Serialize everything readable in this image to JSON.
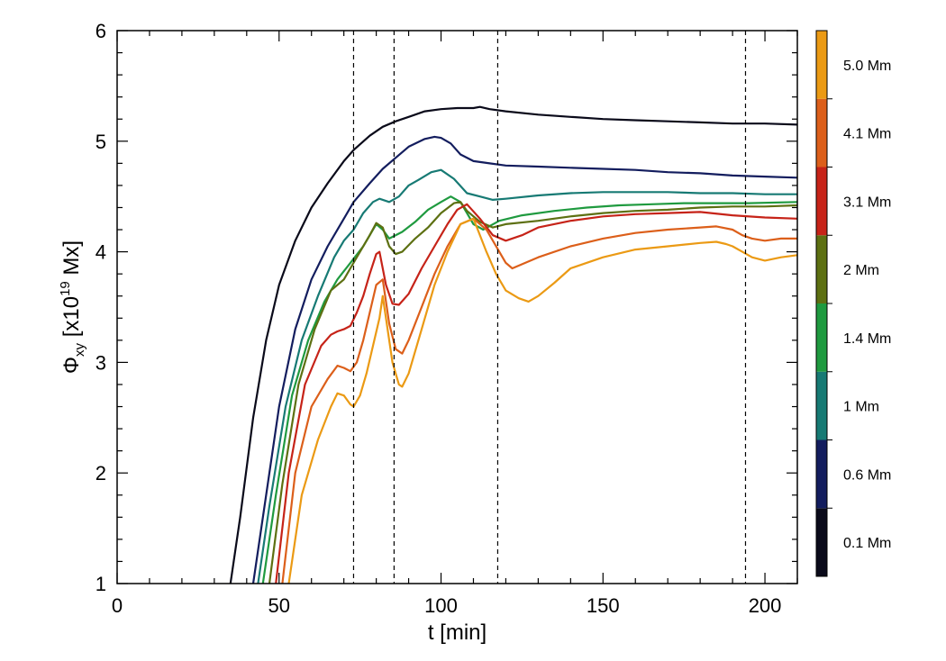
{
  "chart_data": {
    "type": "line",
    "xlabel": "t [min]",
    "ylabel": {
      "symbol": "Φ",
      "subscript": "xy",
      "prefix": " [x10",
      "superscript": "19",
      "suffix": " Mx]"
    },
    "xlim": [
      0,
      210
    ],
    "ylim": [
      1,
      6
    ],
    "xticks": [
      0,
      50,
      100,
      150,
      200
    ],
    "yticks": [
      1,
      2,
      3,
      4,
      5,
      6
    ],
    "vlines": [
      73,
      85.5,
      117.5,
      194
    ],
    "vline_style": "dashed",
    "grid": false,
    "legend": "colorbar-right",
    "series": [
      {
        "name": "0.1 Mm",
        "color": "#0a0a1a",
        "x": [
          35,
          38,
          42,
          46,
          50,
          55,
          60,
          65,
          70,
          73,
          78,
          82,
          86,
          90,
          95,
          100,
          105,
          110,
          112,
          115,
          120,
          130,
          140,
          150,
          160,
          170,
          180,
          190,
          200,
          210
        ],
        "y": [
          1.0,
          1.6,
          2.5,
          3.2,
          3.7,
          4.1,
          4.4,
          4.62,
          4.82,
          4.92,
          5.05,
          5.13,
          5.18,
          5.22,
          5.27,
          5.29,
          5.3,
          5.3,
          5.31,
          5.29,
          5.27,
          5.24,
          5.22,
          5.2,
          5.19,
          5.18,
          5.17,
          5.16,
          5.16,
          5.15
        ]
      },
      {
        "name": "0.6 Mm",
        "color": "#131d5e",
        "x": [
          42,
          45,
          50,
          55,
          60,
          65,
          70,
          73,
          78,
          82,
          86,
          90,
          95,
          98,
          100,
          103,
          106,
          110,
          115,
          120,
          130,
          140,
          150,
          160,
          170,
          180,
          190,
          200,
          210
        ],
        "y": [
          1.0,
          1.6,
          2.6,
          3.3,
          3.75,
          4.05,
          4.3,
          4.45,
          4.62,
          4.75,
          4.85,
          4.95,
          5.02,
          5.04,
          5.03,
          4.98,
          4.88,
          4.82,
          4.8,
          4.78,
          4.77,
          4.76,
          4.75,
          4.74,
          4.72,
          4.71,
          4.69,
          4.68,
          4.67
        ]
      },
      {
        "name": "1 Mm",
        "color": "#177a74",
        "x": [
          43.5,
          47,
          52,
          57,
          62,
          67,
          70,
          73,
          76,
          79,
          81,
          84,
          87,
          90,
          93,
          97,
          100,
          104,
          108,
          112,
          116,
          120,
          130,
          140,
          150,
          160,
          170,
          180,
          190,
          200,
          210
        ],
        "y": [
          1.0,
          1.7,
          2.6,
          3.2,
          3.6,
          3.95,
          4.1,
          4.2,
          4.35,
          4.45,
          4.48,
          4.45,
          4.5,
          4.6,
          4.65,
          4.72,
          4.74,
          4.66,
          4.53,
          4.5,
          4.47,
          4.48,
          4.51,
          4.53,
          4.54,
          4.54,
          4.54,
          4.53,
          4.53,
          4.52,
          4.52
        ]
      },
      {
        "name": "1.4 Mm",
        "color": "#1f9a3f",
        "x": [
          45,
          49,
          54,
          59,
          64,
          68,
          72,
          76,
          78,
          80,
          82,
          84,
          88,
          92,
          96,
          100,
          103,
          106,
          110,
          113,
          118,
          125,
          135,
          145,
          155,
          165,
          175,
          185,
          195,
          210
        ],
        "y": [
          1.0,
          1.8,
          2.7,
          3.2,
          3.55,
          3.75,
          3.9,
          4.05,
          4.15,
          4.25,
          4.2,
          4.12,
          4.18,
          4.27,
          4.38,
          4.45,
          4.5,
          4.45,
          4.25,
          4.2,
          4.28,
          4.33,
          4.37,
          4.4,
          4.42,
          4.43,
          4.44,
          4.44,
          4.44,
          4.45
        ]
      },
      {
        "name": "2 Mm",
        "color": "#5d7012",
        "x": [
          47,
          51,
          56,
          61,
          66,
          70,
          74,
          78,
          80,
          82,
          84,
          86,
          88,
          92,
          96,
          100,
          104,
          106,
          108,
          112,
          116,
          120,
          130,
          140,
          150,
          160,
          170,
          180,
          190,
          200,
          210
        ],
        "y": [
          1.0,
          1.9,
          2.8,
          3.3,
          3.65,
          3.75,
          3.95,
          4.15,
          4.26,
          4.22,
          4.05,
          3.98,
          4.0,
          4.12,
          4.22,
          4.35,
          4.44,
          4.45,
          4.37,
          4.27,
          4.22,
          4.25,
          4.28,
          4.32,
          4.35,
          4.37,
          4.38,
          4.4,
          4.41,
          4.41,
          4.42
        ]
      },
      {
        "name": "3.1 Mm",
        "color": "#c62318",
        "x": [
          49,
          53,
          58,
          63,
          66,
          68,
          70,
          72,
          74,
          76,
          78,
          80,
          81,
          83,
          85,
          87,
          90,
          94,
          98,
          102,
          105,
          108,
          112,
          116,
          120,
          125,
          130,
          140,
          150,
          160,
          170,
          180,
          190,
          200,
          210
        ],
        "y": [
          1.0,
          2.0,
          2.8,
          3.15,
          3.25,
          3.28,
          3.3,
          3.33,
          3.45,
          3.6,
          3.8,
          3.98,
          4.0,
          3.7,
          3.53,
          3.52,
          3.62,
          3.85,
          4.05,
          4.25,
          4.38,
          4.43,
          4.3,
          4.15,
          4.1,
          4.15,
          4.22,
          4.28,
          4.32,
          4.34,
          4.35,
          4.36,
          4.33,
          4.31,
          4.3
        ]
      },
      {
        "name": "4.1 Mm",
        "color": "#dc5f1a",
        "x": [
          51,
          55,
          60,
          65,
          68,
          70,
          72,
          74,
          76,
          78,
          80,
          82,
          84,
          86,
          88,
          90,
          94,
          98,
          102,
          106,
          110,
          114,
          118,
          120,
          122,
          126,
          130,
          140,
          150,
          160,
          170,
          180,
          185,
          190,
          193,
          196,
          200,
          205,
          210
        ],
        "y": [
          1.0,
          2.0,
          2.6,
          2.85,
          2.97,
          2.95,
          2.92,
          3.0,
          3.2,
          3.45,
          3.7,
          3.75,
          3.35,
          3.12,
          3.08,
          3.2,
          3.5,
          3.8,
          4.05,
          4.25,
          4.3,
          4.2,
          4.0,
          3.9,
          3.85,
          3.9,
          3.95,
          4.05,
          4.12,
          4.17,
          4.2,
          4.22,
          4.23,
          4.2,
          4.15,
          4.12,
          4.1,
          4.12,
          4.12
        ]
      },
      {
        "name": "5.0 Mm",
        "color": "#eb9a14",
        "x": [
          53,
          57,
          62,
          66,
          68,
          70,
          72,
          73,
          75,
          77,
          79,
          81,
          82,
          83,
          85,
          87,
          88,
          90,
          94,
          98,
          102,
          106,
          110,
          114,
          117,
          120,
          124,
          127,
          130,
          135,
          140,
          150,
          160,
          170,
          180,
          185,
          188,
          190,
          193,
          196,
          200,
          205,
          210
        ],
        "y": [
          1.0,
          1.8,
          2.3,
          2.6,
          2.72,
          2.7,
          2.62,
          2.6,
          2.7,
          2.9,
          3.15,
          3.4,
          3.6,
          3.4,
          3.0,
          2.8,
          2.78,
          2.9,
          3.3,
          3.7,
          4.0,
          4.25,
          4.3,
          4.0,
          3.8,
          3.65,
          3.58,
          3.55,
          3.6,
          3.72,
          3.85,
          3.95,
          4.02,
          4.05,
          4.08,
          4.09,
          4.07,
          4.05,
          4.0,
          3.95,
          3.92,
          3.95,
          3.97
        ]
      }
    ],
    "colorbar": {
      "labels": [
        "0.1 Mm",
        "0.6 Mm",
        "1 Mm",
        "1.4 Mm",
        "2 Mm",
        "3.1 Mm",
        "4.1 Mm",
        "5.0 Mm"
      ],
      "colors": [
        "#0a0a1a",
        "#131d5e",
        "#177a74",
        "#1f9a3f",
        "#5d7012",
        "#c62318",
        "#dc5f1a",
        "#eb9a14"
      ]
    }
  }
}
